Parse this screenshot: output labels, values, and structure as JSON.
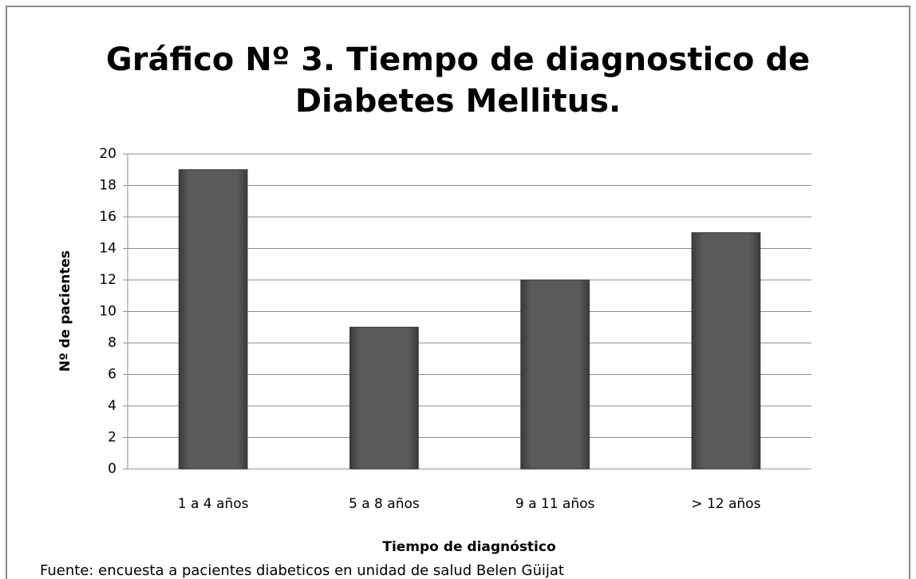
{
  "chart_data": {
    "type": "bar",
    "title": [
      "Gráfico Nº 3. Tiempo de diagnostico de",
      "Diabetes Mellitus."
    ],
    "categories": [
      "1 a 4 años",
      "5 a 8 años",
      "9 a 11 años",
      "> 12 años"
    ],
    "values": [
      19,
      9,
      12,
      15
    ],
    "color": "#555555",
    "ylim": [
      0,
      20
    ],
    "yticks": [
      0,
      2,
      4,
      6,
      8,
      10,
      12,
      14,
      16,
      18,
      20
    ],
    "grid": true,
    "xlabel": "Tiempo de diagnóstico",
    "ylabel": "Nº de pacientes",
    "source": "Fuente: encuesta a pacientes diabeticos en unidad de salud Belen Güijat"
  }
}
